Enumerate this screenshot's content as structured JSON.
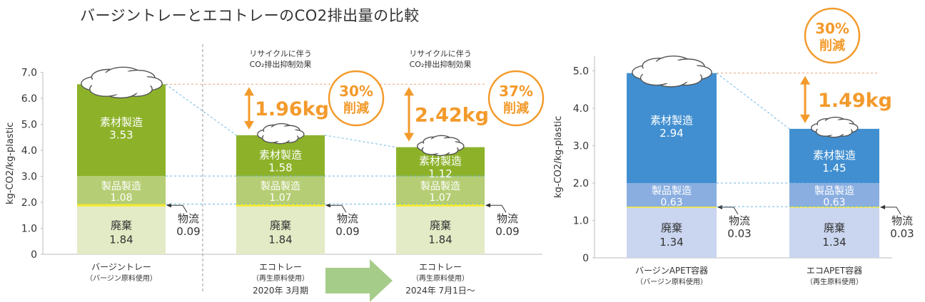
{
  "title": "バージントレーとエコトレーのCO2排出量の比較",
  "colors": {
    "material_green": "#8db22a",
    "product_green": "#b5cd74",
    "disposal_green": "#e3ebc6",
    "material_blue": "#418fd1",
    "product_blue": "#8aaee0",
    "disposal_blue": "#cad5ef",
    "logistics": "#f2e82e",
    "accent_orange": "#f39a2b",
    "axis_text": "#333333"
  },
  "chart_data": [
    {
      "type": "bar",
      "stacked": true,
      "ylabel": "kg-CO2/kg-plastic",
      "ylim": [
        0,
        7
      ],
      "yticks": [
        "0",
        "1.0",
        "2.0",
        "3.0",
        "4.0",
        "5.0",
        "6.0",
        "7.0"
      ],
      "grid": false,
      "categories": [
        {
          "name": "バージントレー",
          "sub": "（バージン原料使用）",
          "period": ""
        },
        {
          "name": "エコトレー",
          "sub": "（再生原料使用）",
          "period": "2020年 3月期"
        },
        {
          "name": "エコトレー",
          "sub": "（再生原料使用）",
          "period": "2024年 7月1日～"
        }
      ],
      "series": [
        {
          "name": "廃棄",
          "values": [
            1.84,
            1.84,
            1.84
          ],
          "labels": [
            "1.84",
            "1.84",
            "1.84"
          ]
        },
        {
          "name": "物流",
          "values": [
            0.09,
            0.09,
            0.09
          ],
          "labels": [
            "0.09",
            "0.09",
            "0.09"
          ]
        },
        {
          "name": "製品製造",
          "values": [
            1.08,
            1.07,
            1.07
          ],
          "labels": [
            "1.08",
            "1.07",
            "1.07"
          ]
        },
        {
          "name": "素材製造",
          "values": [
            3.53,
            1.58,
            1.12
          ],
          "labels": [
            "3.53",
            "1.58",
            "1.12"
          ]
        }
      ],
      "totals": [
        6.54,
        4.58,
        4.12
      ],
      "total_labels": [
        "6.54",
        "4.58",
        "4.12"
      ],
      "reductions": [
        {
          "category_index": 1,
          "note_line1": "リサイクルに伴う",
          "note_line2": "CO₂排出抑制効果",
          "amount": "1.96kg",
          "percent": "30%",
          "word": "削減"
        },
        {
          "category_index": 2,
          "note_line1": "リサイクルに伴う",
          "note_line2": "CO₂排出抑制効果",
          "amount": "2.42kg",
          "percent": "37%",
          "word": "削減"
        }
      ]
    },
    {
      "type": "bar",
      "stacked": true,
      "ylabel": "kg-CO2/kg-plastic",
      "ylim": [
        0,
        5.4
      ],
      "yticks": [
        "0",
        "1.0",
        "2.0",
        "3.0",
        "4.0",
        "5.0"
      ],
      "grid": false,
      "categories": [
        {
          "name": "バージンAPET容器",
          "sub": "（バージン原料使用）",
          "period": ""
        },
        {
          "name": "エコAPET容器",
          "sub": "（再生原料使用）",
          "period": ""
        }
      ],
      "series": [
        {
          "name": "廃棄",
          "values": [
            1.34,
            1.34
          ],
          "labels": [
            "1.34",
            "1.34"
          ]
        },
        {
          "name": "物流",
          "values": [
            0.03,
            0.03
          ],
          "labels": [
            "0.03",
            "0.03"
          ]
        },
        {
          "name": "製品製造",
          "values": [
            0.63,
            0.63
          ],
          "labels": [
            "0.63",
            "0.63"
          ]
        },
        {
          "name": "素材製造",
          "values": [
            2.94,
            1.45
          ],
          "labels": [
            "2.94",
            "1.45"
          ]
        }
      ],
      "totals": [
        4.94,
        3.45
      ],
      "total_labels": [
        "4.94",
        "3.45"
      ],
      "reductions": [
        {
          "category_index": 1,
          "note_line1": "",
          "note_line2": "",
          "amount": "1.49kg",
          "percent": "30%",
          "word": "削減"
        }
      ]
    }
  ]
}
